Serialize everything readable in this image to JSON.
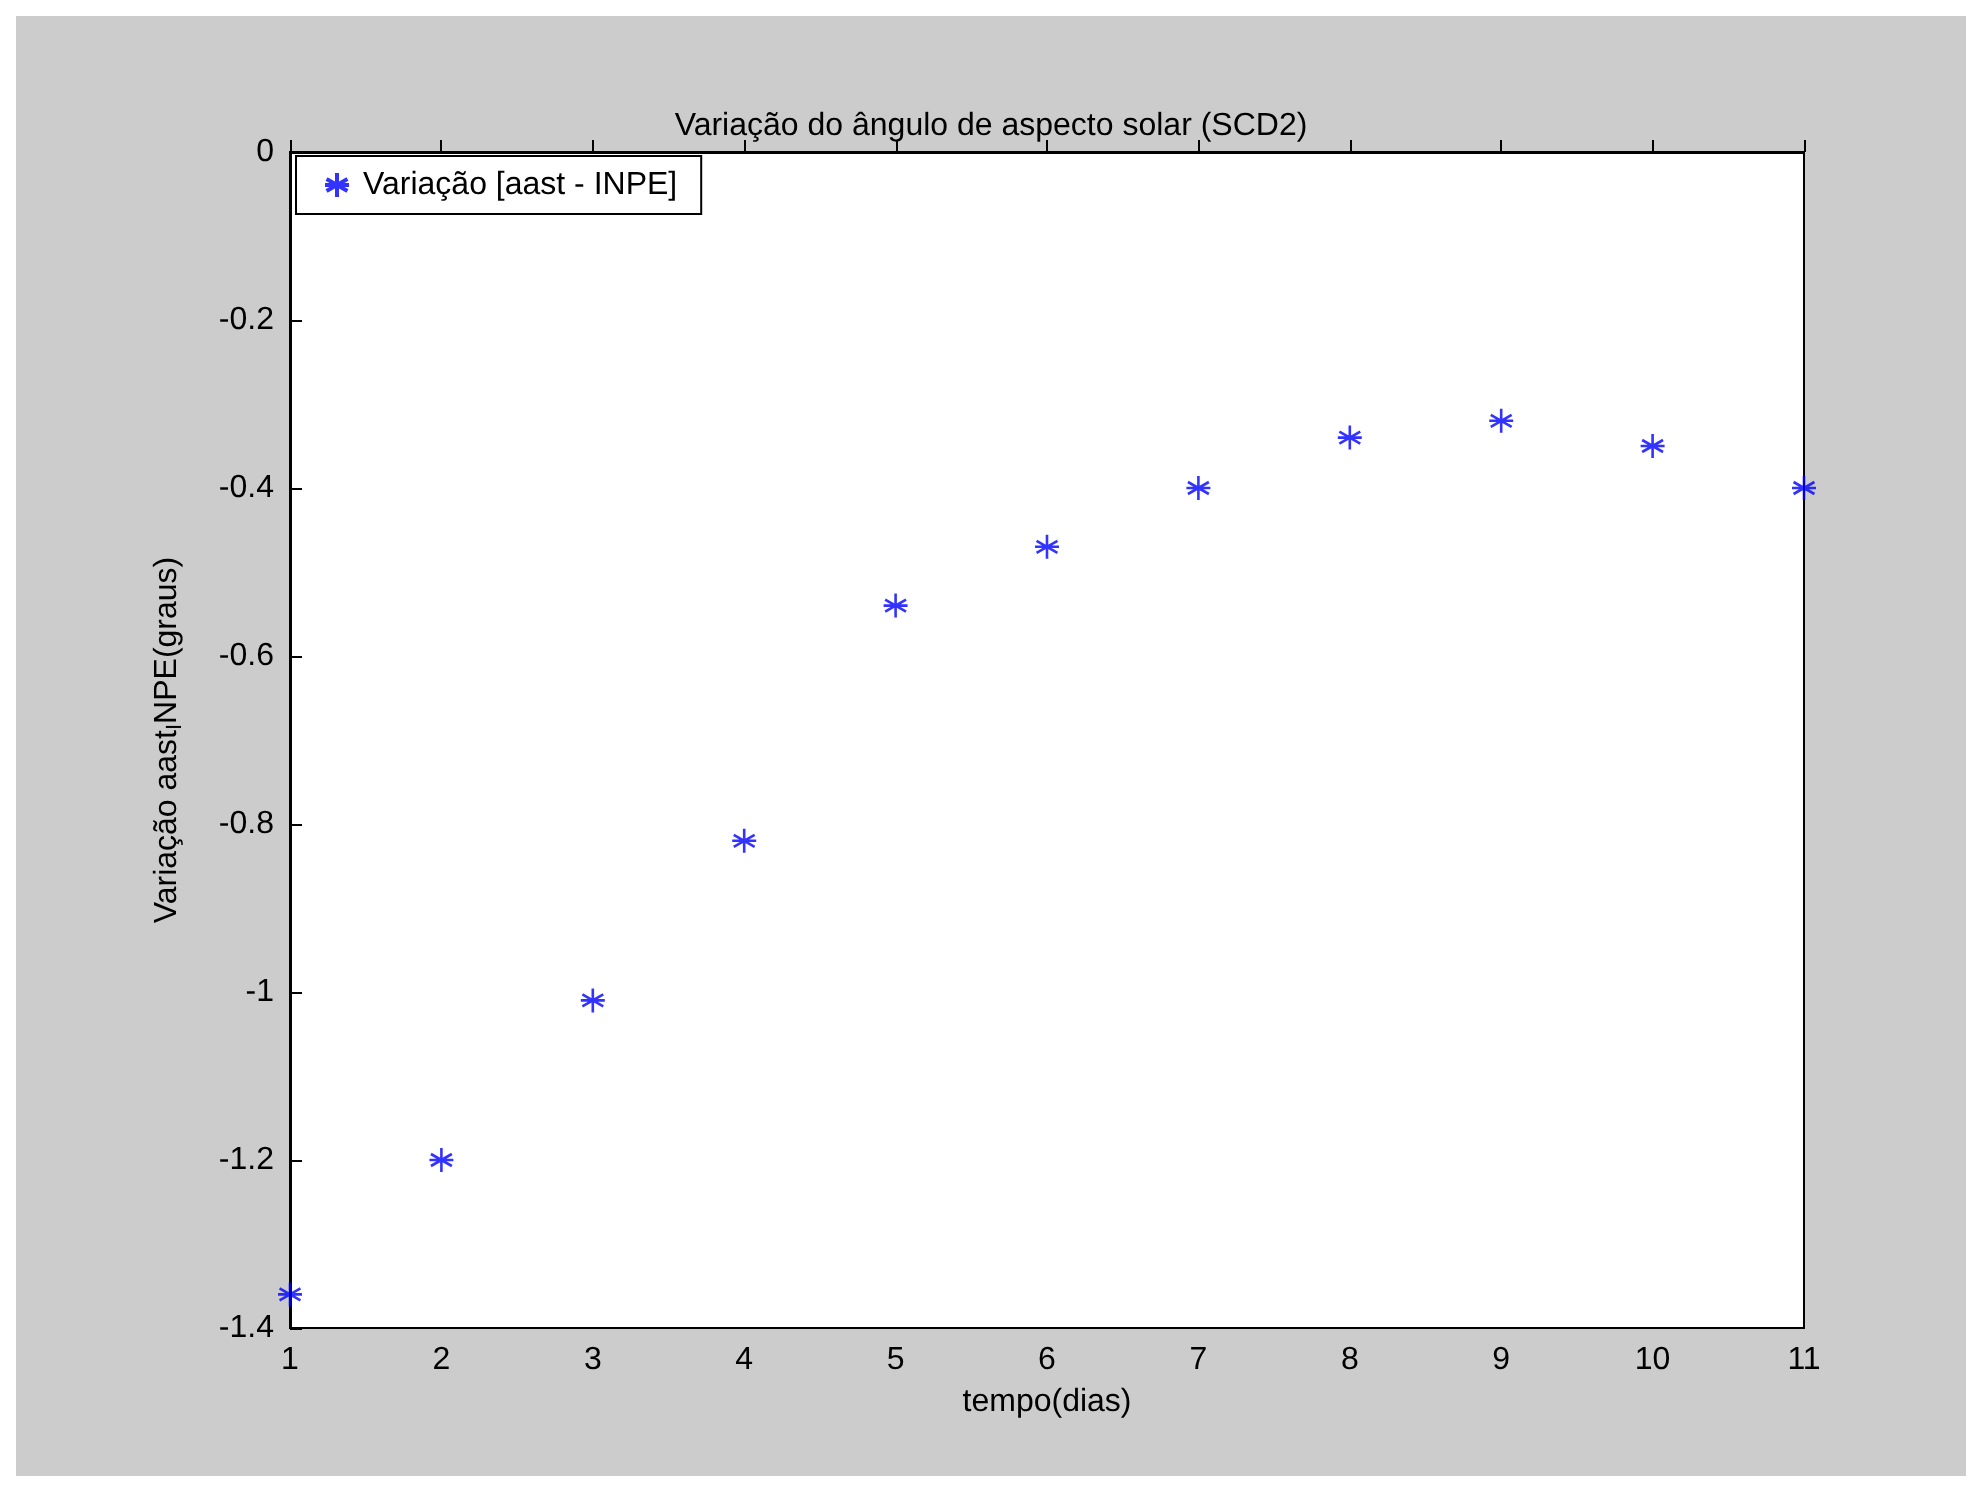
{
  "chart_data": {
    "type": "scatter",
    "title": "Variação do ângulo de aspecto solar (SCD2)",
    "xlabel": "tempo(dias)",
    "ylabel": "Variação aast$_{I}$NPE(graus)",
    "x": [
      1,
      2,
      3,
      4,
      5,
      6,
      7,
      8,
      9,
      10,
      11
    ],
    "series": [
      {
        "name": "Variação [aast - INPE]",
        "color": "#0000ff",
        "values": [
          -1.36,
          -1.2,
          -1.01,
          -0.82,
          -0.54,
          -0.47,
          -0.4,
          -0.34,
          -0.32,
          -0.35,
          -0.4
        ]
      }
    ],
    "xlim": [
      1,
      11
    ],
    "xticks": [
      1,
      2,
      3,
      4,
      5,
      6,
      7,
      8,
      9,
      10,
      11
    ],
    "ylim": [
      -1.4,
      0
    ],
    "yticks": [
      -1.4,
      -1.2,
      -1,
      -0.8,
      -0.6,
      -0.4,
      -0.2,
      0
    ],
    "grid": false,
    "legend": "top left",
    "marker": "cross"
  }
}
